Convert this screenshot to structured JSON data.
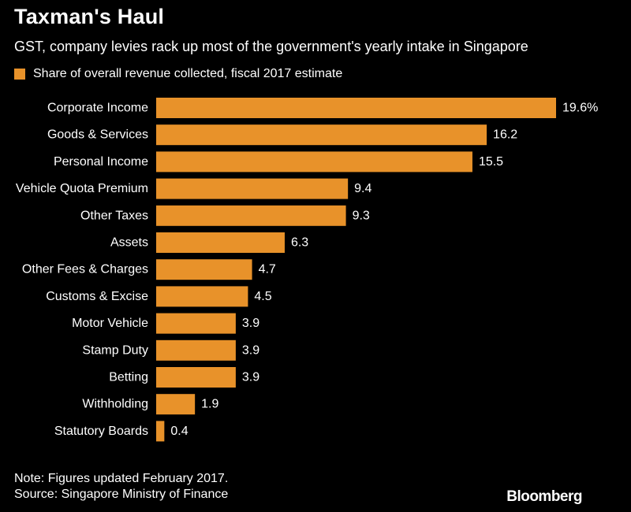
{
  "title": "Taxman's Haul",
  "subtitle": "GST, company levies rack up most of the government's yearly intake in Singapore",
  "legend": {
    "label": "Share of overall revenue collected, fiscal 2017 estimate"
  },
  "colors": {
    "bar": "#E8922A",
    "background": "#000000",
    "text": "#FFFFFF"
  },
  "footer": {
    "note": "Note: Figures updated February 2017.",
    "source": "Source: Singapore Ministry of Finance"
  },
  "brand": "Bloomberg",
  "chart_data": {
    "type": "bar",
    "orientation": "horizontal",
    "categories": [
      "Corporate Income",
      "Goods & Services",
      "Personal Income",
      "Vehicle Quota Premium",
      "Other Taxes",
      "Assets",
      "Other Fees & Charges",
      "Customs & Excise",
      "Motor Vehicle",
      "Stamp Duty",
      "Betting",
      "Withholding",
      "Statutory Boards"
    ],
    "values": [
      19.6,
      16.2,
      15.5,
      9.4,
      9.3,
      6.3,
      4.7,
      4.5,
      3.9,
      3.9,
      3.9,
      1.9,
      0.4
    ],
    "value_labels": [
      "19.6%",
      "16.2",
      "15.5",
      "9.4",
      "9.3",
      "6.3",
      "4.7",
      "4.5",
      "3.9",
      "3.9",
      "3.9",
      "1.9",
      "0.4"
    ],
    "series": [
      {
        "name": "Share of overall revenue collected, fiscal 2017 estimate"
      }
    ],
    "xlim": [
      0,
      19.6
    ],
    "grid": false,
    "legend_position": "top-left"
  }
}
